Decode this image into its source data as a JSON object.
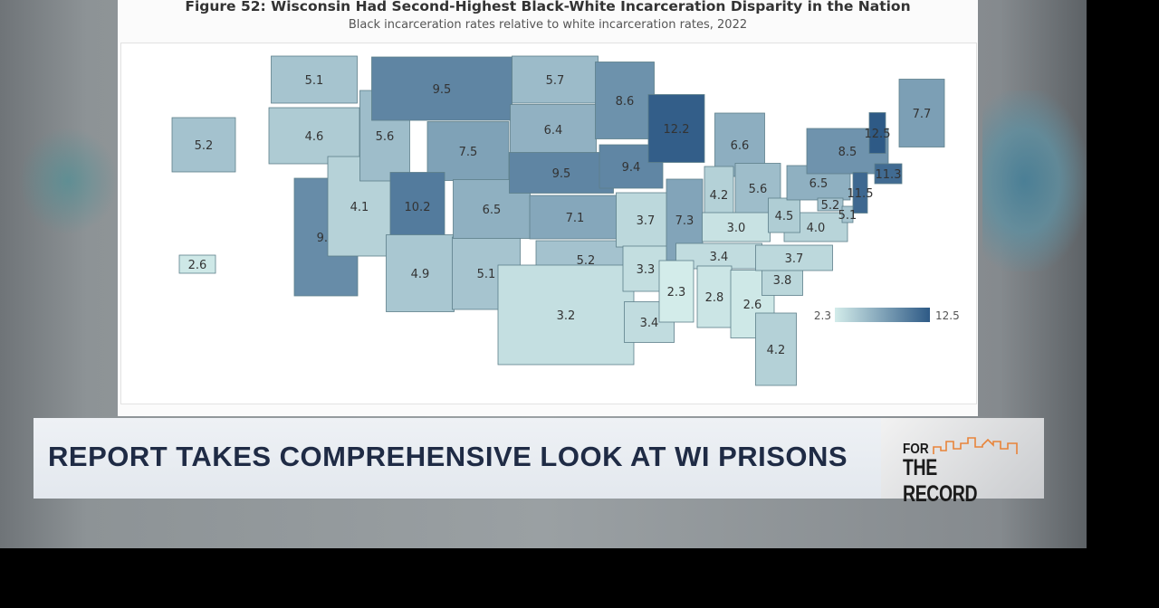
{
  "figure": {
    "title": "Figure 52: Wisconsin Had Second-Highest Black-White Incarceration Disparity in the Nation",
    "subtitle": "Black incarceration rates relative to white incarceration rates, 2022"
  },
  "chart_data": {
    "type": "choropleth",
    "color_scale": {
      "min": 2.3,
      "max": 12.5,
      "min_color": "#d3ecea",
      "max_color": "#2e5a86",
      "min_label": "2.3",
      "max_label": "12.5"
    },
    "legend_placement": "bottom-right",
    "states": [
      {
        "state": "WA",
        "value": "5.1"
      },
      {
        "state": "OR",
        "value": "4.6"
      },
      {
        "state": "CA",
        "value": "9.0"
      },
      {
        "state": "NV",
        "value": "4.1"
      },
      {
        "state": "ID",
        "value": "5.6"
      },
      {
        "state": "MT",
        "value": "9.5"
      },
      {
        "state": "WY",
        "value": "7.5"
      },
      {
        "state": "UT",
        "value": "10.2"
      },
      {
        "state": "AZ",
        "value": "4.9"
      },
      {
        "state": "NM",
        "value": "5.1"
      },
      {
        "state": "CO",
        "value": "6.5"
      },
      {
        "state": "ND",
        "value": "5.7"
      },
      {
        "state": "SD",
        "value": "6.4"
      },
      {
        "state": "NE",
        "value": "9.5"
      },
      {
        "state": "KS",
        "value": "7.1"
      },
      {
        "state": "OK",
        "value": "5.2"
      },
      {
        "state": "TX",
        "value": "3.2"
      },
      {
        "state": "MN",
        "value": "8.6"
      },
      {
        "state": "IA",
        "value": "9.4"
      },
      {
        "state": "MO",
        "value": "3.7"
      },
      {
        "state": "AR",
        "value": "3.3"
      },
      {
        "state": "LA",
        "value": "3.4"
      },
      {
        "state": "WI",
        "value": "12.2"
      },
      {
        "state": "IL",
        "value": "7.3"
      },
      {
        "state": "MI",
        "value": "6.6"
      },
      {
        "state": "IN",
        "value": "4.2"
      },
      {
        "state": "OH",
        "value": "5.6"
      },
      {
        "state": "KY",
        "value": "3.0"
      },
      {
        "state": "TN",
        "value": "3.4"
      },
      {
        "state": "MS",
        "value": "2.3"
      },
      {
        "state": "AL",
        "value": "2.8"
      },
      {
        "state": "GA",
        "value": "2.6"
      },
      {
        "state": "FL",
        "value": "4.2"
      },
      {
        "state": "SC",
        "value": "3.8"
      },
      {
        "state": "NC",
        "value": "3.7"
      },
      {
        "state": "VA",
        "value": "4.0"
      },
      {
        "state": "WV",
        "value": "4.5"
      },
      {
        "state": "PA",
        "value": "6.5"
      },
      {
        "state": "NY",
        "value": "8.5"
      },
      {
        "state": "VT",
        "value": "12.5"
      },
      {
        "state": "ME",
        "value": "7.7"
      },
      {
        "state": "NJ",
        "value": "11.5"
      },
      {
        "state": "MD",
        "value": "5.2"
      },
      {
        "state": "DE",
        "value": "5.1"
      },
      {
        "state": "MA",
        "value": "11.3"
      },
      {
        "state": "AK",
        "value": "5.2"
      },
      {
        "state": "HI",
        "value": "2.6"
      }
    ]
  },
  "banner": {
    "headline": "REPORT TAKES COMPREHENSIVE LOOK AT WI PRISONS"
  },
  "logo": {
    "line1": "FOR",
    "line2": "THE RECORD",
    "accent_color": "#e8843a"
  }
}
